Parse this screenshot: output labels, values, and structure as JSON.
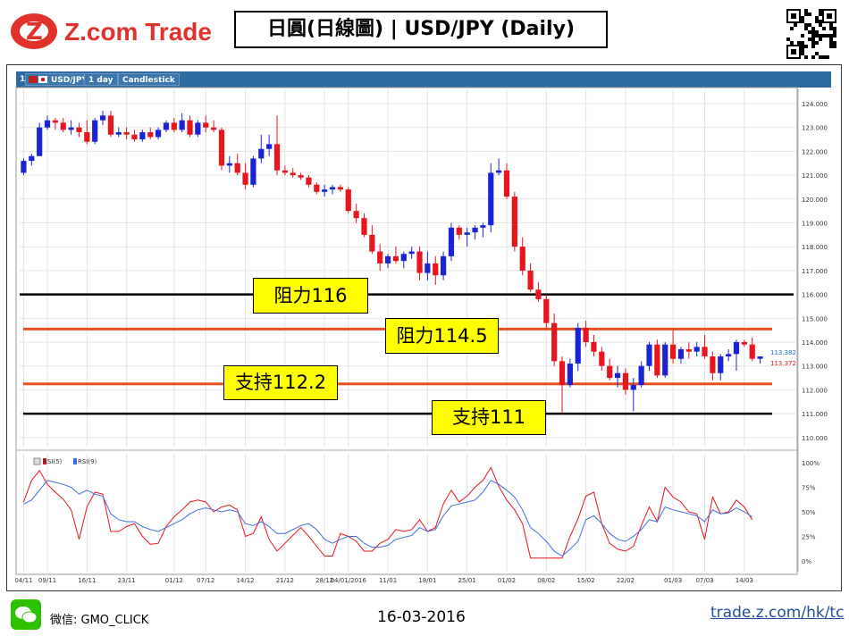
{
  "brand": {
    "logo_text": "Z.com Trade",
    "title": "日圓(日線圖) | USD/JPY (Daily)",
    "colors": {
      "logo_red": "#e0312b",
      "bull": "#1a24d6",
      "bear": "#e8141e",
      "support_line": "#e8501e",
      "toolbar": "#2d6aa0"
    }
  },
  "toolbar": {
    "pane_index": "1:",
    "symbol": "USD/JPY",
    "interval": "1 day",
    "chart_style": "Candlestick"
  },
  "chart_data": [
    {
      "type": "candlestick",
      "title": "USD/JPY",
      "ylim": [
        109.5,
        124.5
      ],
      "y_ticks": [
        "124.000",
        "123.000",
        "122.000",
        "121.000",
        "120.000",
        "119.000",
        "118.000",
        "117.000",
        "116.000",
        "115.000",
        "114.000",
        "113.000",
        "112.000",
        "111.000",
        "110.000"
      ],
      "x_ticks": [
        "04/11",
        "09/11",
        "16/11",
        "23/11",
        "01/12",
        "07/12",
        "14/12",
        "21/12",
        "28/12",
        "04/01/2016",
        "11/01",
        "18/01",
        "25/01",
        "01/02",
        "08/02",
        "15/02",
        "22/02",
        "01/03",
        "07/03",
        "14/03"
      ],
      "x_tick_index": [
        0,
        3,
        8,
        13,
        19,
        23,
        28,
        33,
        38,
        41,
        46,
        51,
        56,
        61,
        66,
        71,
        76,
        82,
        86,
        91
      ],
      "ohlc": [
        [
          121.1,
          121.7,
          121.0,
          121.6
        ],
        [
          121.6,
          121.9,
          121.4,
          121.8
        ],
        [
          121.8,
          123.2,
          121.8,
          123.0
        ],
        [
          123.0,
          123.5,
          122.9,
          123.3
        ],
        [
          123.3,
          123.4,
          122.9,
          123.2
        ],
        [
          123.2,
          123.4,
          122.8,
          122.9
        ],
        [
          122.9,
          123.3,
          122.7,
          123.0
        ],
        [
          123.0,
          123.2,
          122.6,
          122.8
        ],
        [
          122.8,
          123.3,
          122.3,
          122.4
        ],
        [
          122.4,
          123.4,
          122.3,
          123.3
        ],
        [
          123.3,
          123.7,
          123.1,
          123.5
        ],
        [
          123.5,
          123.7,
          122.6,
          122.7
        ],
        [
          122.7,
          123.0,
          122.6,
          122.8
        ],
        [
          122.8,
          123.0,
          122.5,
          122.7
        ],
        [
          122.7,
          122.9,
          122.4,
          122.5
        ],
        [
          122.5,
          122.9,
          122.4,
          122.8
        ],
        [
          122.8,
          123.0,
          122.5,
          122.6
        ],
        [
          122.6,
          123.0,
          122.5,
          122.9
        ],
        [
          122.9,
          123.3,
          122.8,
          123.2
        ],
        [
          123.2,
          123.4,
          122.8,
          122.9
        ],
        [
          122.9,
          123.6,
          122.8,
          123.3
        ],
        [
          123.3,
          123.5,
          122.6,
          122.7
        ],
        [
          122.7,
          123.3,
          122.6,
          123.2
        ],
        [
          123.2,
          123.5,
          122.8,
          123.0
        ],
        [
          123.0,
          123.3,
          122.8,
          122.9
        ],
        [
          122.9,
          123.0,
          121.2,
          121.4
        ],
        [
          121.4,
          121.8,
          121.1,
          121.5
        ],
        [
          121.5,
          121.9,
          121.0,
          121.1
        ],
        [
          121.1,
          121.5,
          120.4,
          120.6
        ],
        [
          120.6,
          121.8,
          120.5,
          121.7
        ],
        [
          121.7,
          122.7,
          121.5,
          122.1
        ],
        [
          122.1,
          122.7,
          121.8,
          122.3
        ],
        [
          122.3,
          123.5,
          121.0,
          121.2
        ],
        [
          121.2,
          121.4,
          121.0,
          121.1
        ],
        [
          121.1,
          121.3,
          120.9,
          121.0
        ],
        [
          121.0,
          121.1,
          120.8,
          120.9
        ],
        [
          120.9,
          121.0,
          120.5,
          120.6
        ],
        [
          120.6,
          120.7,
          120.2,
          120.3
        ],
        [
          120.3,
          120.6,
          120.1,
          120.4
        ],
        [
          120.4,
          120.6,
          120.2,
          120.5
        ],
        [
          120.5,
          120.6,
          120.3,
          120.4
        ],
        [
          120.4,
          120.5,
          119.4,
          119.5
        ],
        [
          119.5,
          119.8,
          119.0,
          119.2
        ],
        [
          119.2,
          119.4,
          118.4,
          118.5
        ],
        [
          118.5,
          118.9,
          117.7,
          117.8
        ],
        [
          117.8,
          118.1,
          117.0,
          117.3
        ],
        [
          117.3,
          117.7,
          117.1,
          117.6
        ],
        [
          117.6,
          118.0,
          117.3,
          117.4
        ],
        [
          117.4,
          117.8,
          117.1,
          117.7
        ],
        [
          117.7,
          118.0,
          117.5,
          117.8
        ],
        [
          117.8,
          118.0,
          116.6,
          116.9
        ],
        [
          116.9,
          117.8,
          116.6,
          117.3
        ],
        [
          117.3,
          117.6,
          116.4,
          116.8
        ],
        [
          116.8,
          117.8,
          116.6,
          117.6
        ],
        [
          117.6,
          119.0,
          117.4,
          118.8
        ],
        [
          118.8,
          118.9,
          118.3,
          118.5
        ],
        [
          118.5,
          118.8,
          118.0,
          118.6
        ],
        [
          118.6,
          118.9,
          118.3,
          118.8
        ],
        [
          118.8,
          119.0,
          118.4,
          118.9
        ],
        [
          118.9,
          121.5,
          118.6,
          121.1
        ],
        [
          121.1,
          121.7,
          121.0,
          121.2
        ],
        [
          121.2,
          121.5,
          120.0,
          120.1
        ],
        [
          120.1,
          120.3,
          117.8,
          118.0
        ],
        [
          118.0,
          118.4,
          116.8,
          117.0
        ],
        [
          117.0,
          117.3,
          116.1,
          116.2
        ],
        [
          116.2,
          116.5,
          115.7,
          115.8
        ],
        [
          115.8,
          116.0,
          114.6,
          114.8
        ],
        [
          114.8,
          115.2,
          113.0,
          113.2
        ],
        [
          113.2,
          113.4,
          111.0,
          112.2
        ],
        [
          112.2,
          113.3,
          112.1,
          113.1
        ],
        [
          113.1,
          114.8,
          112.8,
          114.6
        ],
        [
          114.6,
          114.9,
          113.8,
          114.0
        ],
        [
          114.0,
          114.3,
          113.4,
          113.6
        ],
        [
          113.6,
          113.8,
          112.8,
          113.0
        ],
        [
          113.0,
          113.3,
          112.4,
          112.5
        ],
        [
          112.5,
          113.0,
          112.1,
          112.7
        ],
        [
          112.7,
          112.9,
          111.8,
          112.0
        ],
        [
          112.0,
          112.5,
          111.1,
          112.2
        ],
        [
          112.2,
          113.2,
          112.1,
          113.0
        ],
        [
          113.0,
          114.0,
          112.8,
          113.9
        ],
        [
          113.9,
          114.1,
          112.5,
          112.6
        ],
        [
          112.6,
          114.0,
          112.5,
          113.9
        ],
        [
          113.9,
          114.5,
          113.1,
          113.3
        ],
        [
          113.3,
          113.8,
          113.1,
          113.7
        ],
        [
          113.7,
          114.0,
          113.3,
          113.6
        ],
        [
          113.6,
          114.0,
          113.4,
          113.8
        ],
        [
          113.8,
          114.3,
          113.3,
          113.4
        ],
        [
          113.4,
          113.6,
          112.4,
          112.7
        ],
        [
          112.7,
          113.5,
          112.4,
          113.4
        ],
        [
          113.4,
          113.7,
          113.2,
          113.5
        ],
        [
          113.5,
          114.1,
          112.8,
          114.0
        ],
        [
          114.0,
          114.1,
          113.8,
          113.9
        ],
        [
          113.9,
          114.2,
          113.2,
          113.3
        ],
        [
          113.3,
          113.4,
          113.1,
          113.4
        ]
      ],
      "last_bid": "113.382",
      "last_ask": "113.372",
      "levels": [
        {
          "label": "阻力116",
          "value": 116.0,
          "color": "#000000"
        },
        {
          "label": "阻力114.5",
          "value": 114.55,
          "color": "#e8501e"
        },
        {
          "label": "支持112.2",
          "value": 112.25,
          "color": "#e8501e"
        },
        {
          "label": "支持111",
          "value": 111.0,
          "color": "#000000"
        }
      ]
    },
    {
      "type": "line",
      "title": "RSI",
      "ylim": [
        0,
        100
      ],
      "y_ticks": [
        "100%",
        "75%",
        "50%",
        "25%",
        "0%"
      ],
      "series": [
        {
          "name": "RSI(5)",
          "color": "#e8141e",
          "values": [
            60,
            82,
            92,
            78,
            70,
            63,
            52,
            22,
            55,
            70,
            68,
            30,
            30,
            35,
            38,
            25,
            17,
            18,
            35,
            45,
            52,
            60,
            62,
            60,
            50,
            55,
            57,
            52,
            25,
            28,
            45,
            22,
            10,
            18,
            26,
            34,
            25,
            15,
            5,
            5,
            28,
            25,
            20,
            10,
            10,
            18,
            22,
            32,
            30,
            32,
            42,
            30,
            34,
            58,
            72,
            60,
            66,
            75,
            82,
            95,
            76,
            62,
            52,
            38,
            3,
            3,
            3,
            3,
            3,
            25,
            43,
            66,
            70,
            38,
            18,
            12,
            10,
            15,
            36,
            55,
            40,
            75,
            65,
            60,
            50,
            48,
            22,
            65,
            48,
            50,
            62,
            55,
            42
          ]
        },
        {
          "name": "RSI(9)",
          "color": "#3c6edc",
          "values": [
            58,
            62,
            72,
            82,
            80,
            78,
            75,
            68,
            72,
            68,
            66,
            48,
            42,
            40,
            40,
            35,
            32,
            30,
            34,
            38,
            42,
            48,
            52,
            54,
            52,
            50,
            52,
            50,
            38,
            36,
            40,
            35,
            28,
            28,
            32,
            36,
            38,
            32,
            22,
            18,
            22,
            25,
            25,
            18,
            14,
            14,
            16,
            22,
            24,
            26,
            34,
            30,
            32,
            46,
            56,
            58,
            60,
            62,
            70,
            82,
            78,
            72,
            65,
            52,
            34,
            28,
            20,
            10,
            5,
            12,
            20,
            42,
            46,
            38,
            28,
            22,
            20,
            25,
            32,
            42,
            40,
            55,
            52,
            50,
            48,
            46,
            40,
            52,
            48,
            49,
            54,
            50,
            45
          ]
        }
      ],
      "legend": [
        "RSI(5)",
        "RSI(9)"
      ]
    }
  ],
  "footer": {
    "wechat_handle": "微信: GMO_CLICK",
    "date": "16-03-2016",
    "url": "trade.z.com/hk/tc"
  }
}
